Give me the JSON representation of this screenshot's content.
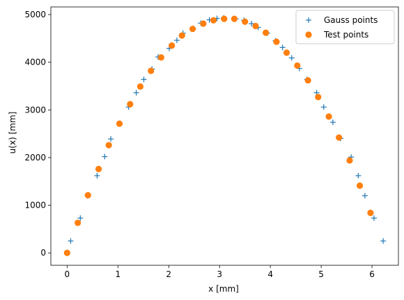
{
  "chart_data": {
    "type": "scatter",
    "title": "",
    "xlabel": "x [mm]",
    "ylabel": "u(x) [mm]",
    "xlim": [
      -0.32,
      6.52
    ],
    "ylim": [
      -260,
      5160
    ],
    "xticks": [
      0,
      1,
      2,
      3,
      4,
      5,
      6
    ],
    "yticks": [
      0,
      1000,
      2000,
      3000,
      4000,
      5000
    ],
    "grid": false,
    "legend_position": "top-right",
    "series": [
      {
        "name": "Gauss points",
        "marker": "plus",
        "color": "#1f77b4",
        "x": [
          0.07,
          0.26,
          0.4,
          0.59,
          0.74,
          0.86,
          1.03,
          1.21,
          1.36,
          1.51,
          1.67,
          1.79,
          2.01,
          2.16,
          2.28,
          2.48,
          2.63,
          2.8,
          2.95,
          3.08,
          3.32,
          3.48,
          3.63,
          3.76,
          3.94,
          4.1,
          4.24,
          4.42,
          4.57,
          4.72,
          4.91,
          5.05,
          5.23,
          5.38,
          5.59,
          5.73,
          5.86,
          6.04,
          6.22
        ],
        "y": [
          250,
          730,
          1200,
          1620,
          2020,
          2390,
          2720,
          3060,
          3360,
          3640,
          3860,
          4110,
          4290,
          4460,
          4610,
          4710,
          4820,
          4890,
          4920,
          4930,
          4910,
          4880,
          4810,
          4730,
          4610,
          4450,
          4310,
          4090,
          3870,
          3640,
          3360,
          3060,
          2740,
          2400,
          2010,
          1620,
          1200,
          730,
          250
        ]
      },
      {
        "name": "Test points",
        "marker": "circle",
        "color": "#ff7f0e",
        "x": [
          0.0,
          0.21,
          0.41,
          0.62,
          0.82,
          1.03,
          1.24,
          1.44,
          1.65,
          1.85,
          2.06,
          2.26,
          2.47,
          2.68,
          2.88,
          3.09,
          3.29,
          3.5,
          3.71,
          3.91,
          4.12,
          4.32,
          4.53,
          4.74,
          4.94,
          5.15,
          5.35,
          5.56,
          5.76,
          5.97
        ],
        "y": [
          0,
          630,
          1210,
          1760,
          2260,
          2710,
          3120,
          3490,
          3820,
          4100,
          4350,
          4560,
          4700,
          4810,
          4880,
          4910,
          4910,
          4850,
          4760,
          4620,
          4430,
          4200,
          3930,
          3620,
          3270,
          2860,
          2420,
          1940,
          1410,
          840
        ]
      }
    ]
  }
}
